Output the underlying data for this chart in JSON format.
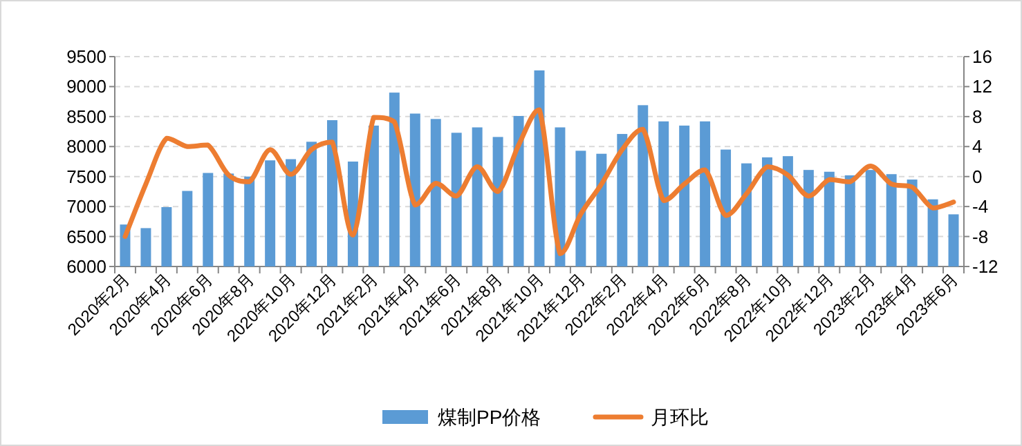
{
  "chart_data": {
    "type": "bar",
    "categories": [
      "2020年2月",
      null,
      "2020年4月",
      null,
      "2020年6月",
      null,
      "2020年8月",
      null,
      "2020年10月",
      null,
      "2020年12月",
      null,
      "2021年2月",
      null,
      "2021年4月",
      null,
      "2021年6月",
      null,
      "2021年8月",
      null,
      "2021年10月",
      null,
      "2021年12月",
      null,
      "2022年2月",
      null,
      "2022年4月",
      null,
      "2022年6月",
      null,
      "2022年8月",
      null,
      "2022年10月",
      null,
      "2022年12月",
      null,
      "2023年2月",
      null,
      "2023年4月",
      null,
      "2023年6月"
    ],
    "series": [
      {
        "name": "煤制PP价格",
        "color": "#5b9bd5",
        "values": [
          6700,
          6640,
          6990,
          7260,
          7560,
          7550,
          7500,
          7770,
          7790,
          8080,
          8440,
          7750,
          8350,
          8900,
          8550,
          8460,
          8230,
          8320,
          8160,
          8510,
          9270,
          8320,
          7930,
          7880,
          8210,
          8690,
          8420,
          8350,
          8420,
          7950,
          7720,
          7820,
          7840,
          7610,
          7580,
          7520,
          7610,
          7540,
          7450,
          7120,
          6870
        ]
      },
      {
        "name": "月环比",
        "type": "line",
        "axis": "y2",
        "color": "#ed7d31",
        "values": [
          -8,
          -1,
          5.1,
          4,
          4.2,
          0.2,
          -0.7,
          3.6,
          0.3,
          3.6,
          4.6,
          -7.8,
          7.9,
          7.3,
          -3.8,
          -0.9,
          -2.6,
          1.3,
          -2,
          4.2,
          8.9,
          -10.3,
          -5,
          -1,
          3.6,
          6.3,
          -3.2,
          -1,
          0.9,
          -5.2,
          -2.3,
          1.3,
          0.2,
          -2.6,
          -0.4,
          -0.7,
          1.4,
          -1,
          -1.4,
          -4.2,
          -3.4
        ]
      }
    ],
    "ylim": [
      6000,
      9500
    ],
    "yticks": [
      6000,
      6500,
      7000,
      7500,
      8000,
      8500,
      9000,
      9500
    ],
    "y2lim": [
      -12,
      16
    ],
    "y2ticks": [
      -12,
      -8,
      -4,
      0,
      4,
      8,
      12,
      16
    ],
    "grid": "y",
    "legend": "bottom"
  }
}
